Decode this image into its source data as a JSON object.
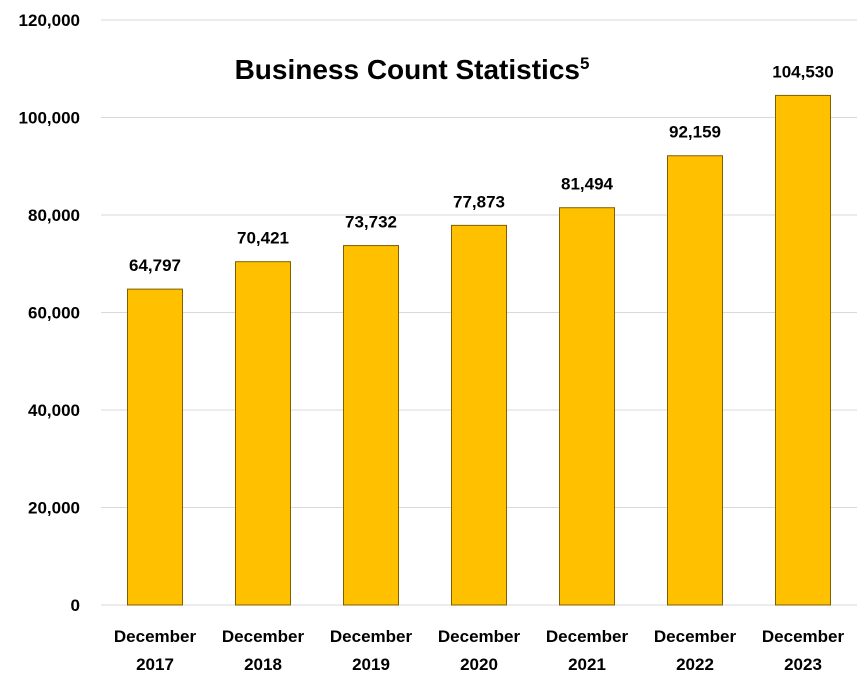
{
  "chart_data": {
    "type": "bar",
    "title": "Business Count Statistics",
    "title_superscript": "5",
    "categories": [
      [
        "December",
        "2017"
      ],
      [
        "December",
        "2018"
      ],
      [
        "December",
        "2019"
      ],
      [
        "December",
        "2020"
      ],
      [
        "December",
        "2021"
      ],
      [
        "December",
        "2022"
      ],
      [
        "December",
        "2023"
      ]
    ],
    "values": [
      64797,
      70421,
      73732,
      77873,
      81494,
      92159,
      104530
    ],
    "value_labels": [
      "64,797",
      "70,421",
      "73,732",
      "77,873",
      "81,494",
      "92,159",
      "104,530"
    ],
    "yticks": [
      "0",
      "20,000",
      "40,000",
      "60,000",
      "80,000",
      "100,000",
      "120,000"
    ],
    "ylim": [
      0,
      120000
    ],
    "xlabel": "",
    "ylabel": "",
    "grid": true,
    "legend": false,
    "bar_color": "#ffc000",
    "bar_edge_color": "#7f6000"
  }
}
